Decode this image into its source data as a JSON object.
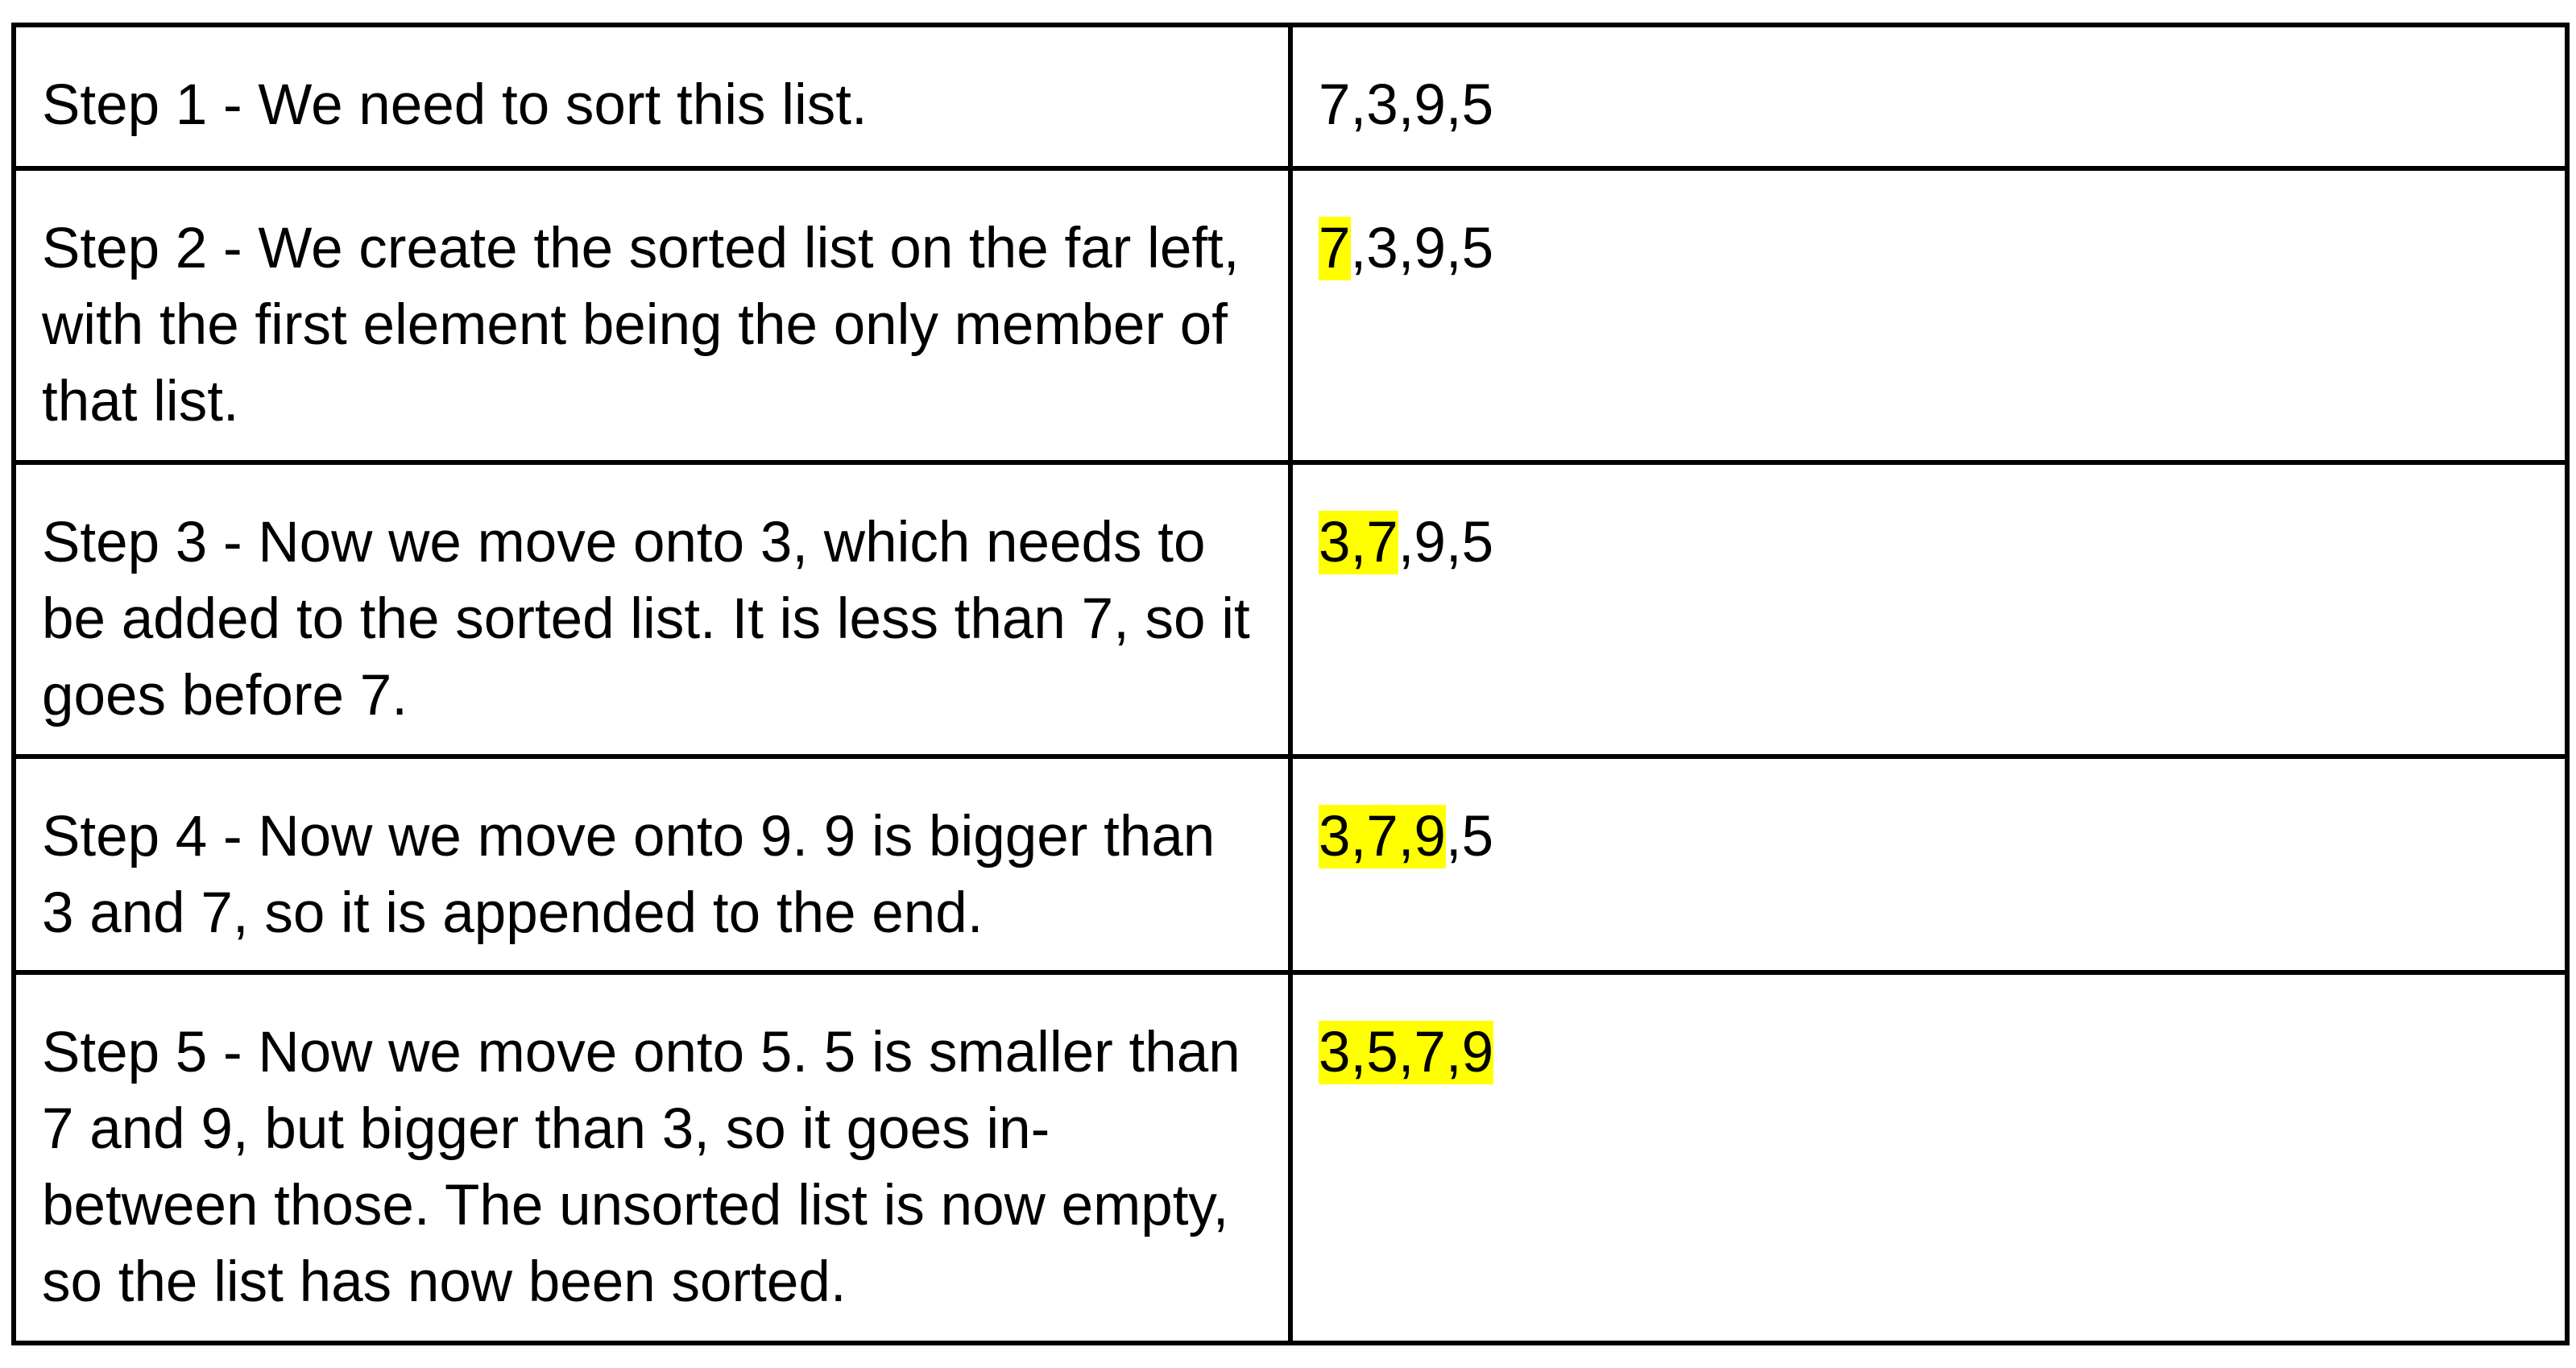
{
  "highlight_color": "#ffff00",
  "rows": [
    {
      "description": "Step 1 - We need to sort this list.",
      "list_highlighted": "",
      "list_rest": "7,3,9,5"
    },
    {
      "description": "Step 2 - We create the sorted list on the far left, with the first element being the only member of that list.",
      "list_highlighted": "7",
      "list_rest": ",3,9,5"
    },
    {
      "description": "Step 3 - Now we move onto 3, which needs to be added to the sorted list. It is less than 7, so it goes before 7.",
      "list_highlighted": "3,7",
      "list_rest": ",9,5"
    },
    {
      "description": "Step 4 - Now we move onto 9. 9 is bigger than 3 and 7, so it is appended to the end.",
      "list_highlighted": "3,7,9",
      "list_rest": ",5"
    },
    {
      "description": "Step 5 - Now we move onto 5. 5 is smaller than 7 and 9, but bigger than 3, so it goes in-between those. The unsorted list is now empty, so the list has now been sorted.",
      "list_highlighted": "3,5,7,9",
      "list_rest": ""
    }
  ]
}
